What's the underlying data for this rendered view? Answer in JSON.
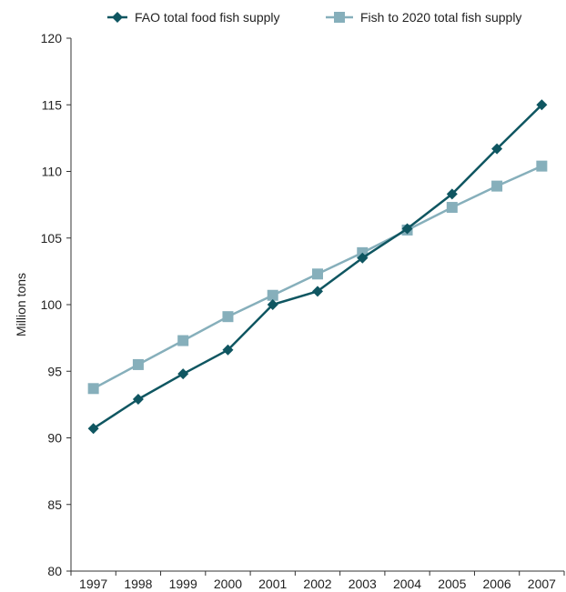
{
  "chart_data": {
    "type": "line",
    "title": "",
    "xlabel": "",
    "ylabel": "Million tons",
    "x": [
      "1997",
      "1998",
      "1999",
      "2000",
      "2001",
      "2002",
      "2003",
      "2004",
      "2005",
      "2006",
      "2007"
    ],
    "ylim": [
      80,
      120
    ],
    "yticks": [
      "80",
      "85",
      "90",
      "95",
      "100",
      "105",
      "110",
      "115",
      "120"
    ],
    "grid": false,
    "legend": "top",
    "series": [
      {
        "name": "FAO total food fish supply",
        "marker": "diamond",
        "color": "#0f5661",
        "values": [
          90.7,
          92.9,
          94.8,
          96.6,
          100.0,
          101.0,
          103.5,
          105.7,
          108.3,
          111.7,
          115.0
        ]
      },
      {
        "name": "Fish to 2020 total fish supply",
        "marker": "square",
        "color": "#86afbb",
        "values": [
          93.7,
          95.5,
          97.3,
          99.1,
          100.7,
          102.3,
          103.9,
          105.6,
          107.3,
          108.9,
          110.4
        ]
      }
    ]
  }
}
